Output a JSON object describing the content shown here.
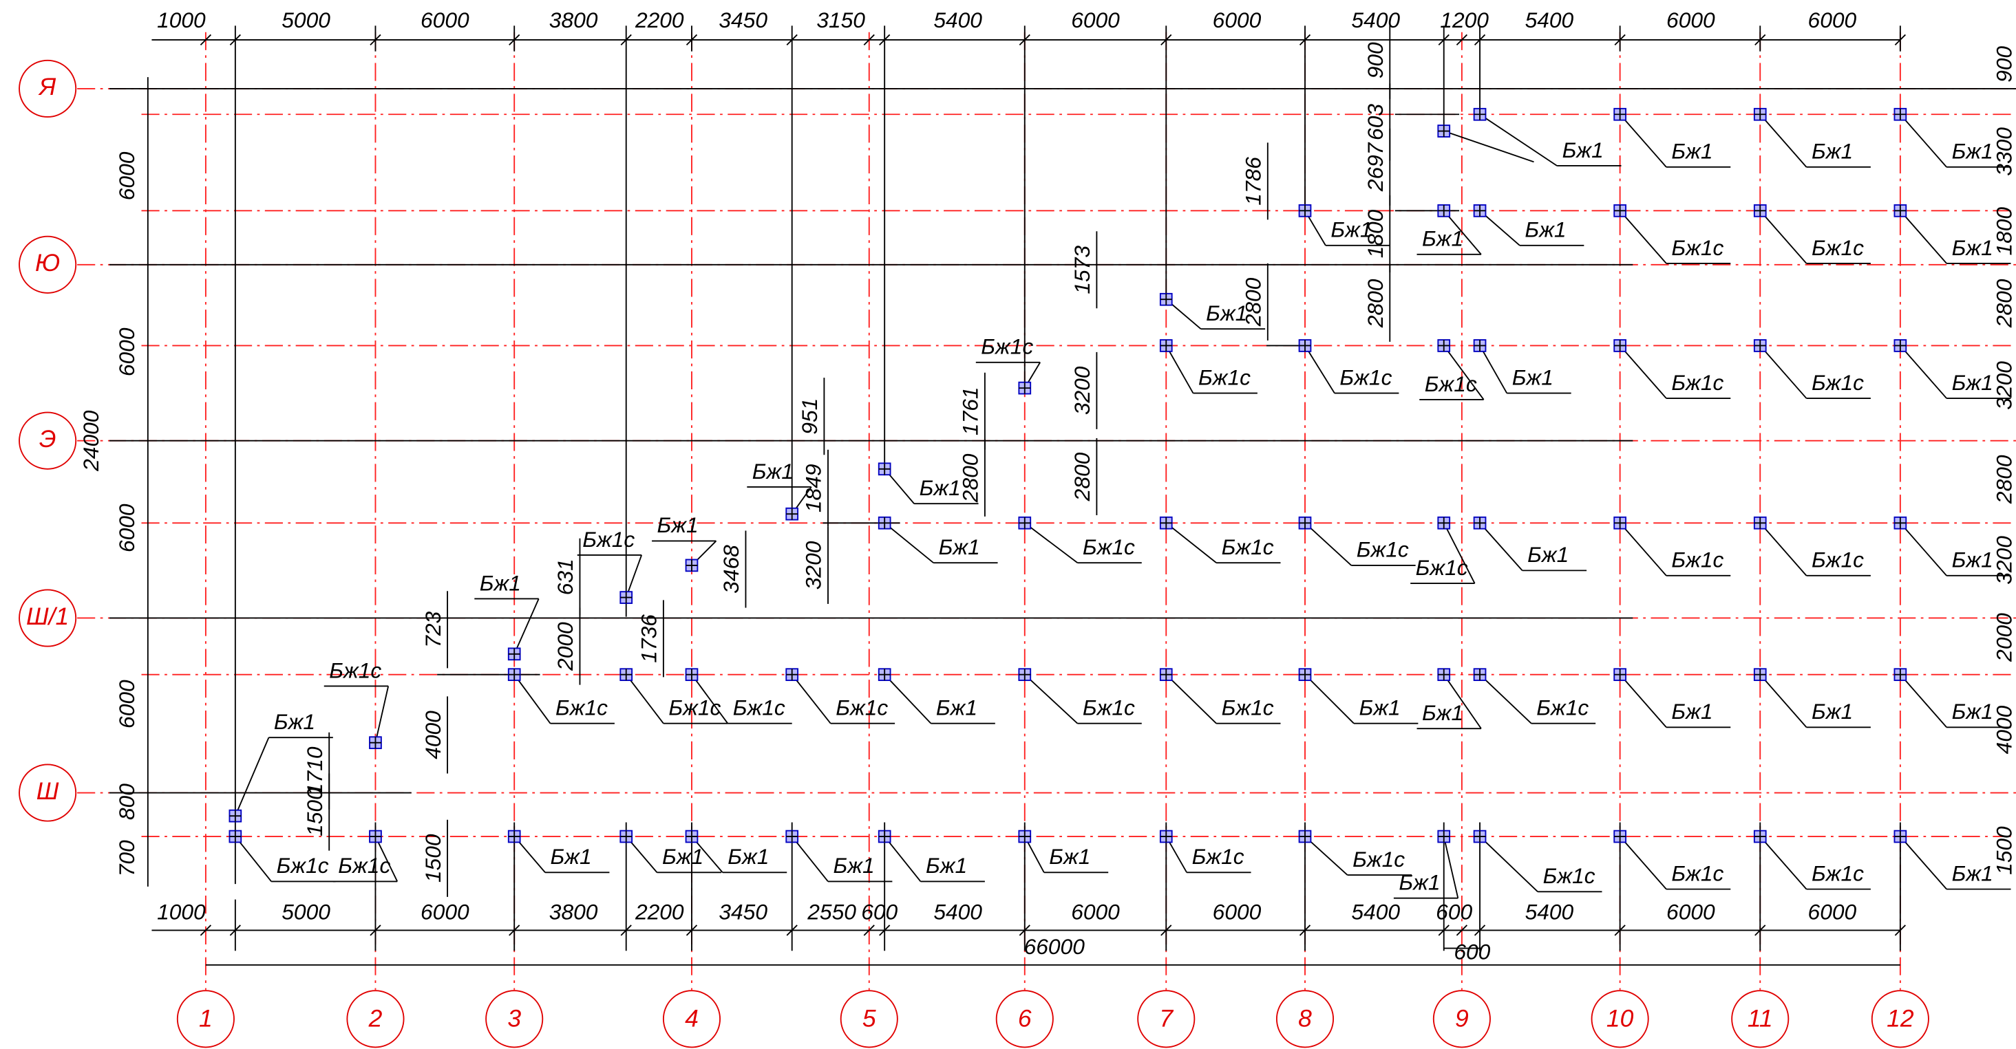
{
  "axes": {
    "columns": [
      "1",
      "2",
      "3",
      "4",
      "5",
      "6",
      "7",
      "8",
      "9",
      "10",
      "11",
      "12"
    ],
    "rows": [
      "Я",
      "Ю",
      "Э",
      "Ш/1",
      "Ш"
    ]
  },
  "dimensions": {
    "top": [
      "1000",
      "5000",
      "6000",
      "3800",
      "2200",
      "3450",
      "3150",
      "5400",
      "6000",
      "6000",
      "5400",
      "1200",
      "5400",
      "6000",
      "6000"
    ],
    "bottom": [
      "1000",
      "5000",
      "6000",
      "3800",
      "2200",
      "3450",
      "2550",
      "600",
      "5400",
      "6000",
      "6000",
      "5400",
      "600",
      "5400",
      "6000",
      "6000"
    ],
    "overall": [
      "66000",
      "600"
    ],
    "left": [
      "6000",
      "6000",
      "6000",
      "6000",
      "800",
      "700",
      "24000"
    ],
    "right": [
      "900",
      "3300",
      "1800",
      "2800",
      "3200",
      "2800",
      "3200",
      "2000",
      "4000",
      "1500"
    ],
    "inner": [
      "1710",
      "1500",
      "723",
      "4000",
      "1500",
      "631",
      "2000",
      "1736",
      "3468",
      "951",
      "1849",
      "3200",
      "1761",
      "2800",
      "1573",
      "3200",
      "2800",
      "1786",
      "2800",
      "900",
      "603",
      "2697",
      "1800",
      "2800"
    ]
  },
  "markers": [
    "Бж1",
    "Бж1с",
    "Бж1с",
    "Бж1с",
    "Бж1",
    "Бж1с",
    "Бж1",
    "Бж1с",
    "Бж1с",
    "Бж1",
    "Бж1",
    "Бж1с",
    "Бж1",
    "Бж1",
    "Бж1с",
    "Бж1",
    "Бж1",
    "Бж1",
    "Бж1",
    "Бж1",
    "Бж1с",
    "Бж1с",
    "Бж1с",
    "Бж1",
    "Бж1",
    "Бж1с",
    "Бж1с",
    "Бж1с",
    "Бж1с",
    "Бж1",
    "Бж1с",
    "Бж1с",
    "Бж1",
    "Бж1с",
    "Бж1",
    "Бж1",
    "Бж1",
    "Бж1с",
    "Бж1",
    "Бж1с",
    "Бж1",
    "Бж1",
    "Бж1с",
    "Бж1",
    "Бж1с",
    "Бж1",
    "Бж1с",
    "Бж1с",
    "Бж1с",
    "Бж1",
    "Бж1с",
    "Бж1",
    "Бж1с",
    "Бж1с",
    "Бж1с",
    "Бж1",
    "Бж1с",
    "Бж1",
    "Бж1",
    "Бж1",
    "Бж1",
    "Бж1",
    "Бж1"
  ]
}
